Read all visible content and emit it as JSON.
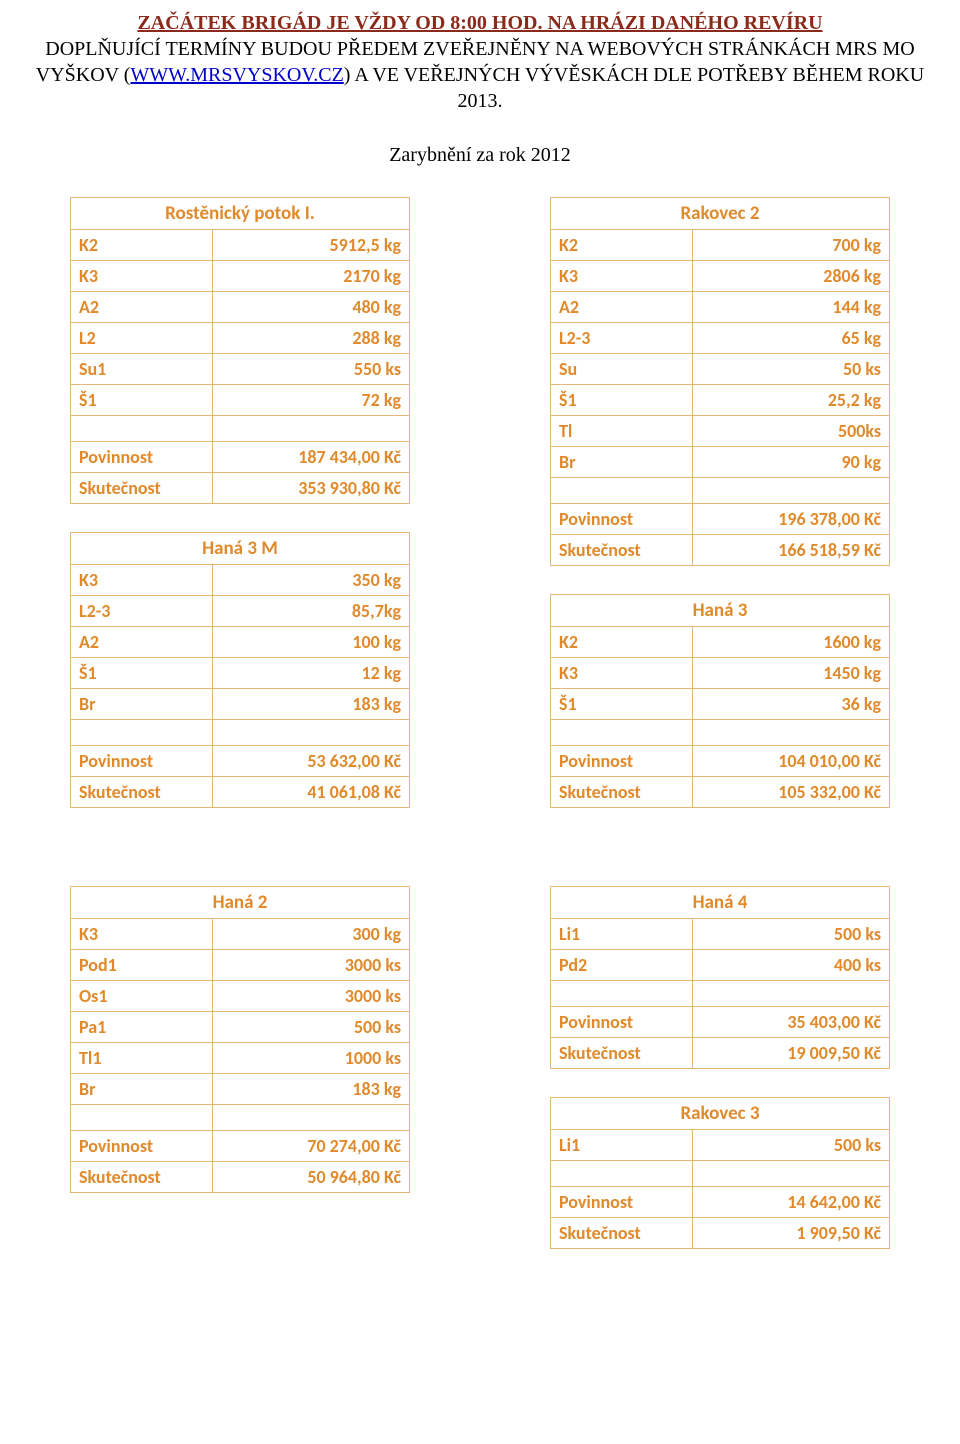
{
  "header": {
    "line1": "ZAČÁTEK BRIGÁD JE VŽDY OD 8:00 HOD. NA HRÁZI DANÉHO REVÍRU",
    "line2a": "DOPLŇUJÍCÍ TERMÍNY BUDOU PŘEDEM ZVEŘEJNĚNY NA WEBOVÝCH STRÁNKÁCH MRS MO VYŠKOV (",
    "line2link": "WWW.MRSVYSKOV.CZ",
    "line2b": ") A VE VEŘEJNÝCH VÝVĚSKÁCH DLE POTŘEBY BĚHEM ROKU 2013."
  },
  "subtitle": "Zarybnění za rok 2012",
  "tables": {
    "rostenicky": {
      "title": "Rostěnický potok I.",
      "rows": [
        {
          "label": "K2",
          "value": "5912,5 kg"
        },
        {
          "label": "K3",
          "value": "2170 kg"
        },
        {
          "label": "A2",
          "value": "480 kg"
        },
        {
          "label": "L2",
          "value": "288 kg"
        },
        {
          "label": "Su1",
          "value": "550 ks"
        },
        {
          "label": "Š1",
          "value": "72 kg"
        }
      ],
      "povinnost": "187 434,00 Kč",
      "skutecnost": "353 930,80 Kč"
    },
    "hana3m": {
      "title": "Haná 3 M",
      "rows": [
        {
          "label": "K3",
          "value": "350 kg"
        },
        {
          "label": "L2-3",
          "value": "85,7kg"
        },
        {
          "label": "A2",
          "value": "100 kg"
        },
        {
          "label": "Š1",
          "value": "12 kg"
        },
        {
          "label": "Br",
          "value": "183 kg"
        }
      ],
      "povinnost": "53 632,00 Kč",
      "skutecnost": "41 061,08 Kč"
    },
    "rakovec2": {
      "title": "Rakovec 2",
      "rows": [
        {
          "label": "K2",
          "value": "700 kg"
        },
        {
          "label": "K3",
          "value": "2806 kg"
        },
        {
          "label": "A2",
          "value": "144 kg"
        },
        {
          "label": "L2-3",
          "value": "65 kg"
        },
        {
          "label": "Su",
          "value": "50 ks"
        },
        {
          "label": "Š1",
          "value": "25,2 kg"
        },
        {
          "label": "Tl",
          "value": "500ks"
        },
        {
          "label": "Br",
          "value": "90 kg"
        }
      ],
      "povinnost": "196 378,00 Kč",
      "skutecnost": "166 518,59 Kč"
    },
    "hana3": {
      "title": "Haná 3",
      "rows": [
        {
          "label": "K2",
          "value": "1600 kg"
        },
        {
          "label": "K3",
          "value": "1450 kg"
        },
        {
          "label": "Š1",
          "value": "36 kg"
        }
      ],
      "povinnost": "104 010,00 Kč",
      "skutecnost": "105 332,00 Kč"
    },
    "hana2": {
      "title": "Haná 2",
      "rows": [
        {
          "label": "K3",
          "value": "300 kg"
        },
        {
          "label": "Pod1",
          "value": "3000 ks"
        },
        {
          "label": "Os1",
          "value": "3000 ks"
        },
        {
          "label": "Pa1",
          "value": "500 ks"
        },
        {
          "label": "Tl1",
          "value": "1000 ks"
        },
        {
          "label": "Br",
          "value": "183 kg"
        }
      ],
      "povinnost": "70 274,00 Kč",
      "skutecnost": "50 964,80 Kč"
    },
    "hana4": {
      "title": "Haná 4",
      "rows": [
        {
          "label": "Li1",
          "value": "500 ks"
        },
        {
          "label": "Pd2",
          "value": "400 ks"
        }
      ],
      "povinnost": "35 403,00 Kč",
      "skutecnost": "19 009,50 Kč"
    },
    "rakovec3": {
      "title": "Rakovec 3",
      "rows": [
        {
          "label": "Li1",
          "value": "500 ks"
        }
      ],
      "povinnost": "14 642,00 Kč",
      "skutecnost": "1 909,50 Kč"
    }
  },
  "labels": {
    "povinnost": "Povinnost",
    "skutecnost": "Skutečnost"
  },
  "colors": {
    "accent": "#e08a2c",
    "border": "#e6b77a",
    "red": "#8b2a1a",
    "link": "#0000cc",
    "background": "#ffffff"
  }
}
